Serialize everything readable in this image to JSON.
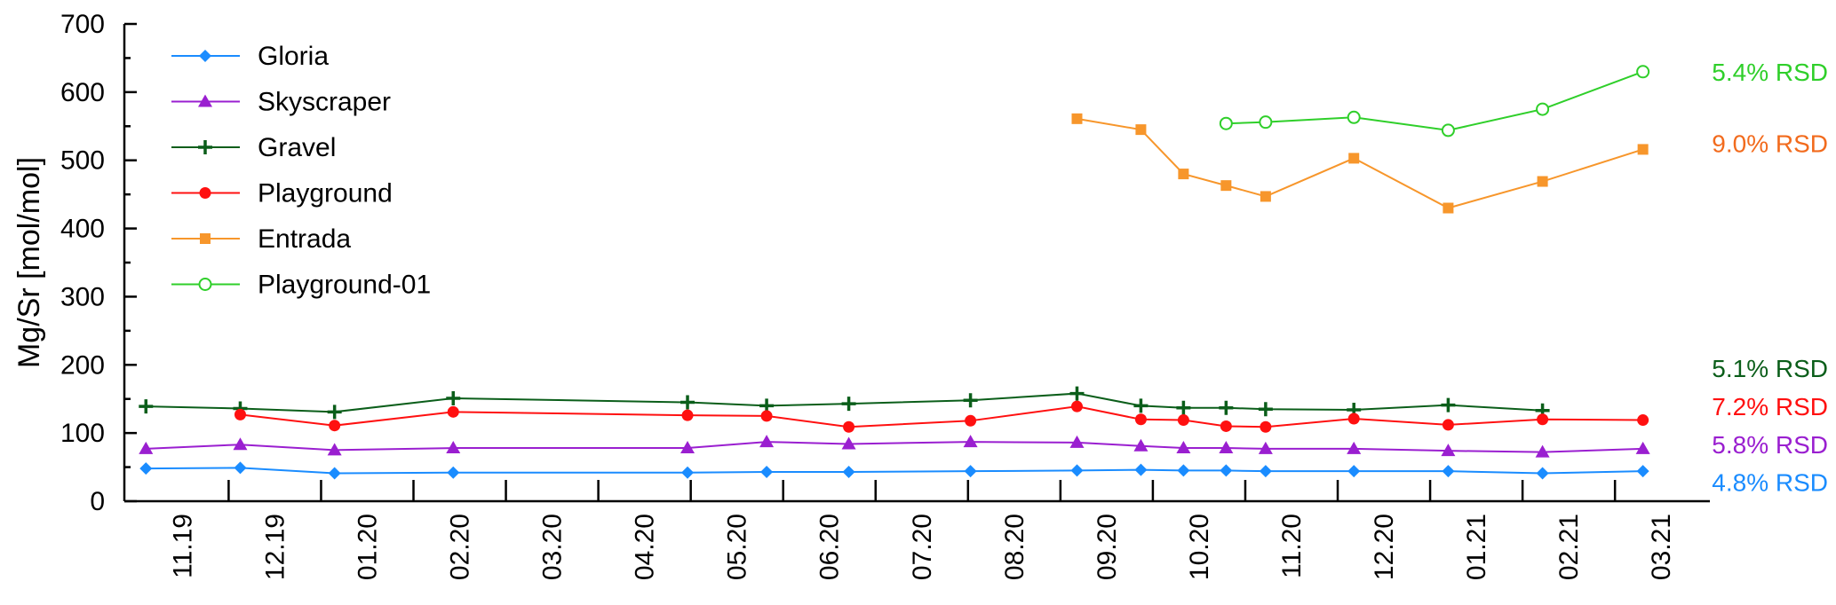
{
  "chart_data": {
    "type": "line",
    "title": "",
    "xlabel": "",
    "ylabel": "Mg/Sr [mol/mol]",
    "ylim": [
      0,
      700
    ],
    "yticks": [
      0,
      100,
      200,
      300,
      400,
      500,
      600,
      700
    ],
    "xticks": [
      "11.19",
      "12.19",
      "01.20",
      "02.20",
      "03.20",
      "04.20",
      "05.20",
      "06.20",
      "07.20",
      "08.20",
      "09.20",
      "10.20",
      "11.20",
      "12.20",
      "01.21",
      "02.21",
      "03.21"
    ],
    "grid": false,
    "legend_position": "top-left",
    "series": [
      {
        "name": "Gloria",
        "color": "#1a8cff",
        "marker": "diamond",
        "x": [
          "2019-11-04",
          "2019-12-05",
          "2020-01-05",
          "2020-02-13",
          "2020-04-30",
          "2020-05-26",
          "2020-06-22",
          "2020-08-01",
          "2020-09-05",
          "2020-09-26",
          "2020-10-10",
          "2020-10-24",
          "2020-11-06",
          "2020-12-05",
          "2021-01-05",
          "2021-02-05",
          "2021-03-10"
        ],
        "y": [
          48,
          49,
          41,
          42,
          42,
          43,
          43,
          44,
          45,
          46,
          45,
          45,
          44,
          44,
          44,
          41,
          44
        ]
      },
      {
        "name": "Skyscraper",
        "color": "#9a1fd0",
        "marker": "triangle",
        "x": [
          "2019-11-04",
          "2019-12-05",
          "2020-01-05",
          "2020-02-13",
          "2020-04-30",
          "2020-05-26",
          "2020-06-22",
          "2020-08-01",
          "2020-09-05",
          "2020-09-26",
          "2020-10-10",
          "2020-10-24",
          "2020-11-06",
          "2020-12-05",
          "2021-01-05",
          "2021-02-05",
          "2021-03-10"
        ],
        "y": [
          77,
          83,
          75,
          78,
          78,
          87,
          84,
          87,
          86,
          81,
          78,
          78,
          77,
          77,
          74,
          72,
          77
        ]
      },
      {
        "name": "Gravel",
        "color": "#0b5e1a",
        "marker": "plus",
        "x": [
          "2019-11-04",
          "2019-12-05",
          "2020-01-05",
          "2020-02-13",
          "2020-04-30",
          "2020-05-26",
          "2020-06-22",
          "2020-08-01",
          "2020-09-05",
          "2020-09-26",
          "2020-10-10",
          "2020-10-24",
          "2020-11-06",
          "2020-12-05",
          "2021-01-05",
          "2021-02-05"
        ],
        "y": [
          139,
          136,
          131,
          151,
          145,
          140,
          143,
          148,
          158,
          140,
          137,
          137,
          135,
          134,
          141,
          133
        ]
      },
      {
        "name": "Playground",
        "color": "#ff1010",
        "marker": "circle",
        "x": [
          "2019-12-05",
          "2020-01-05",
          "2020-02-13",
          "2020-04-30",
          "2020-05-26",
          "2020-06-22",
          "2020-08-01",
          "2020-09-05",
          "2020-09-26",
          "2020-10-10",
          "2020-10-24",
          "2020-11-06",
          "2020-12-05",
          "2021-01-05",
          "2021-02-05",
          "2021-03-10"
        ],
        "y": [
          127,
          111,
          131,
          126,
          125,
          109,
          118,
          139,
          120,
          119,
          110,
          109,
          121,
          112,
          120,
          119
        ]
      },
      {
        "name": "Entrada",
        "color": "#f7962b",
        "marker": "square",
        "x": [
          "2020-09-05",
          "2020-09-26",
          "2020-10-10",
          "2020-10-24",
          "2020-11-06",
          "2020-12-05",
          "2021-01-05",
          "2021-02-05",
          "2021-03-10"
        ],
        "y": [
          561,
          545,
          480,
          463,
          447,
          503,
          430,
          469,
          516
        ]
      },
      {
        "name": "Playground-01",
        "color": "#2fcf2a",
        "marker": "open-circle",
        "x": [
          "2020-10-24",
          "2020-11-06",
          "2020-12-05",
          "2021-01-05",
          "2021-02-05",
          "2021-03-10"
        ],
        "y": [
          554,
          556,
          563,
          544,
          575,
          630
        ]
      }
    ],
    "annotations": [
      {
        "text": "5.4% RSD",
        "color": "#2fcf2a",
        "anchor_y": 630
      },
      {
        "text": "9.0% RSD",
        "color": "#f26b1d",
        "anchor_y": 525
      },
      {
        "text": "5.1% RSD",
        "color": "#0b5e1a",
        "anchor_y": 195
      },
      {
        "text": "7.2% RSD",
        "color": "#ff1010",
        "anchor_y": 139
      },
      {
        "text": "5.8% RSD",
        "color": "#9a1fd0",
        "anchor_y": 83
      },
      {
        "text": "4.8% RSD",
        "color": "#1a8cff",
        "anchor_y": 28
      }
    ]
  }
}
